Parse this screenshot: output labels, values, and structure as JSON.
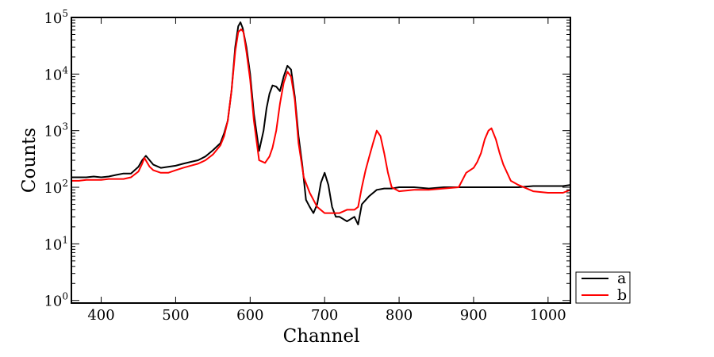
{
  "chart_data": {
    "type": "line",
    "title": "",
    "xlabel": "Channel",
    "ylabel": "Counts",
    "xlim": [
      360,
      1030
    ],
    "ylim": [
      0.9,
      100000
    ],
    "yscale": "log",
    "grid": false,
    "legend_position": "outside-bottom-right",
    "xticks": [
      400,
      500,
      600,
      700,
      800,
      900,
      1000
    ],
    "xtick_labels": [
      "400",
      "500",
      "600",
      "700",
      "800",
      "900",
      "1000"
    ],
    "yticks": [
      1,
      10,
      100,
      1000,
      10000,
      100000
    ],
    "ytick_labels": [
      {
        "base": "10",
        "exp": "0"
      },
      {
        "base": "10",
        "exp": "1"
      },
      {
        "base": "10",
        "exp": "2"
      },
      {
        "base": "10",
        "exp": "3"
      },
      {
        "base": "10",
        "exp": "4"
      },
      {
        "base": "10",
        "exp": "5"
      }
    ],
    "series": [
      {
        "name": "a",
        "color": "#000000",
        "x": [
          360,
          370,
          380,
          390,
          400,
          410,
          420,
          430,
          440,
          450,
          455,
          460,
          465,
          470,
          480,
          490,
          500,
          510,
          520,
          530,
          540,
          550,
          560,
          565,
          570,
          575,
          580,
          584,
          587,
          590,
          595,
          600,
          605,
          612,
          618,
          622,
          626,
          630,
          635,
          640,
          645,
          650,
          655,
          660,
          665,
          670,
          675,
          680,
          685,
          690,
          695,
          700,
          705,
          710,
          715,
          720,
          730,
          740,
          745,
          750,
          760,
          770,
          780,
          790,
          800,
          820,
          840,
          860,
          880,
          900,
          920,
          940,
          960,
          980,
          1000,
          1020,
          1030
        ],
        "y": [
          150,
          150,
          150,
          155,
          150,
          155,
          165,
          175,
          175,
          230,
          300,
          360,
          300,
          250,
          220,
          230,
          240,
          260,
          280,
          300,
          350,
          450,
          600,
          900,
          1500,
          5000,
          30000,
          70000,
          82000,
          65000,
          30000,
          10000,
          2000,
          440,
          1000,
          2500,
          4500,
          6300,
          6000,
          5000,
          9000,
          14000,
          12000,
          4000,
          800,
          250,
          60,
          45,
          35,
          50,
          120,
          180,
          110,
          45,
          30,
          30,
          25,
          30,
          22,
          50,
          70,
          90,
          95,
          95,
          100,
          100,
          95,
          100,
          100,
          100,
          100,
          100,
          100,
          105,
          105,
          105,
          110
        ]
      },
      {
        "name": "b",
        "color": "#ff0000",
        "x": [
          360,
          370,
          380,
          390,
          400,
          410,
          420,
          430,
          440,
          450,
          455,
          458,
          465,
          470,
          480,
          490,
          500,
          510,
          520,
          530,
          540,
          550,
          560,
          565,
          570,
          575,
          580,
          584,
          588,
          591,
          595,
          600,
          605,
          612,
          620,
          626,
          630,
          635,
          640,
          645,
          650,
          655,
          660,
          665,
          672,
          680,
          690,
          700,
          710,
          720,
          730,
          740,
          745,
          750,
          755,
          760,
          765,
          770,
          775,
          780,
          785,
          790,
          800,
          820,
          840,
          860,
          880,
          890,
          900,
          905,
          910,
          915,
          920,
          924,
          930,
          935,
          940,
          950,
          960,
          980,
          1000,
          1020,
          1030
        ],
        "y": [
          130,
          130,
          135,
          135,
          135,
          140,
          140,
          140,
          150,
          190,
          260,
          330,
          230,
          200,
          180,
          180,
          200,
          220,
          240,
          260,
          300,
          380,
          550,
          800,
          1500,
          5000,
          25000,
          55000,
          62000,
          55000,
          25000,
          8000,
          1500,
          300,
          270,
          350,
          500,
          1000,
          3000,
          7000,
          11000,
          9000,
          3500,
          600,
          150,
          80,
          45,
          35,
          35,
          35,
          40,
          40,
          45,
          100,
          200,
          350,
          600,
          1000,
          800,
          400,
          180,
          100,
          85,
          90,
          90,
          95,
          100,
          180,
          220,
          280,
          400,
          700,
          1000,
          1100,
          700,
          400,
          250,
          130,
          110,
          85,
          80,
          80,
          90
        ]
      }
    ]
  }
}
